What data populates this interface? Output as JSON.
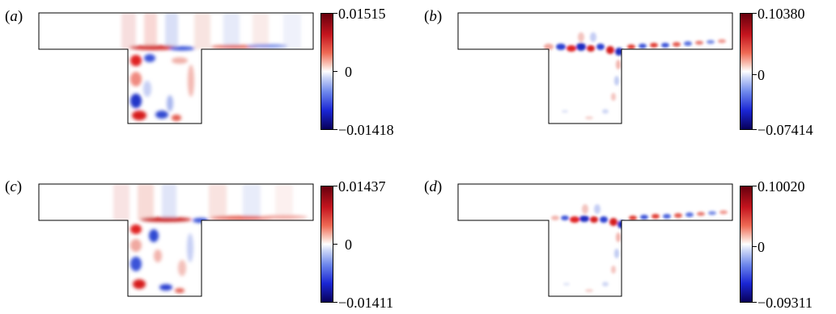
{
  "panels": [
    {
      "label": "a",
      "cbar_max": "0.01515",
      "cbar_mid": "0",
      "cbar_min": "−0.01418"
    },
    {
      "label": "b",
      "cbar_max": "0.10380",
      "cbar_mid": "0",
      "cbar_min": "−0.07414"
    },
    {
      "label": "c",
      "cbar_max": "0.01437",
      "cbar_mid": "0",
      "cbar_min": "−0.01411"
    },
    {
      "label": "d",
      "cbar_max": "0.10020",
      "cbar_mid": "0",
      "cbar_min": "−0.09311"
    }
  ],
  "colors": {
    "positive": "#d7191c",
    "negative": "#1f3fd6",
    "zero": "#ffffff",
    "outline": "#000000"
  }
}
